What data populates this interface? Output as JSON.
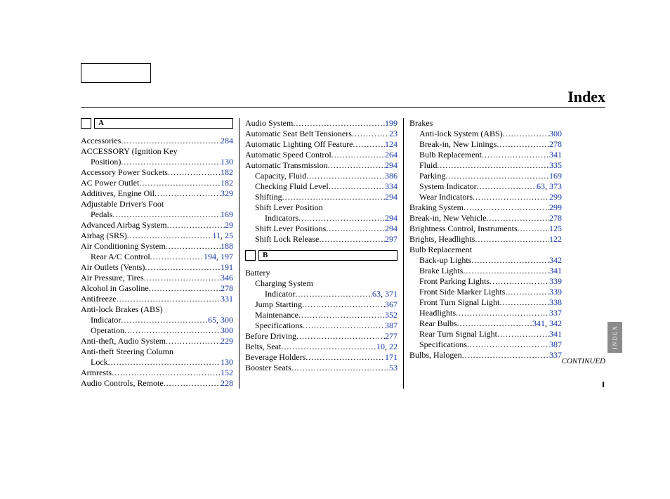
{
  "title": "Index",
  "sidetab": "INDEX",
  "continued": "CONTINUED",
  "letters": {
    "A": "A",
    "B": "B"
  },
  "col1": [
    {
      "t": "letter",
      "k": "A"
    },
    {
      "t": "e",
      "i": 0,
      "label": "Accessories",
      "pages": [
        "284"
      ]
    },
    {
      "t": "h",
      "i": 0,
      "label": "ACCESSORY (Ignition Key"
    },
    {
      "t": "e",
      "i": 1,
      "label": "Position)",
      "pages": [
        "130"
      ]
    },
    {
      "t": "e",
      "i": 0,
      "label": "Accessory Power Sockets",
      "pages": [
        "182"
      ]
    },
    {
      "t": "e",
      "i": 0,
      "label": "AC Power Outlet",
      "pages": [
        "182"
      ]
    },
    {
      "t": "e",
      "i": 0,
      "label": "Additives, Engine Oil",
      "pages": [
        "329"
      ]
    },
    {
      "t": "h",
      "i": 0,
      "label": "Adjustable Driver's Foot"
    },
    {
      "t": "e",
      "i": 1,
      "label": "Pedals",
      "pages": [
        "169"
      ]
    },
    {
      "t": "e",
      "i": 0,
      "label": "Advanced Airbag System",
      "pages": [
        "29"
      ]
    },
    {
      "t": "e",
      "i": 0,
      "label": "Airbag (SRS) ",
      "pages": [
        "11",
        "25"
      ]
    },
    {
      "t": "e",
      "i": 0,
      "label": "Air Conditioning System",
      "pages": [
        "188"
      ]
    },
    {
      "t": "e",
      "i": 1,
      "label": "Rear A/C Control",
      "pages": [
        "194",
        "197"
      ]
    },
    {
      "t": "e",
      "i": 0,
      "label": "Air Outlets (Vents)",
      "pages": [
        "191"
      ]
    },
    {
      "t": "e",
      "i": 0,
      "label": "Air Pressure, Tires",
      "pages": [
        "346"
      ]
    },
    {
      "t": "e",
      "i": 0,
      "label": "Alcohol in Gasoline",
      "pages": [
        "278"
      ]
    },
    {
      "t": "e",
      "i": 0,
      "label": "Antifreeze",
      "pages": [
        "331"
      ]
    },
    {
      "t": "h",
      "i": 0,
      "label": "Anti-lock Brakes (ABS)"
    },
    {
      "t": "e",
      "i": 1,
      "label": "Indicator",
      "pages": [
        "65",
        "300"
      ]
    },
    {
      "t": "e",
      "i": 1,
      "label": "Operation",
      "pages": [
        "300"
      ]
    },
    {
      "t": "e",
      "i": 0,
      "label": "Anti-theft, Audio System",
      "pages": [
        "229"
      ]
    },
    {
      "t": "h",
      "i": 0,
      "label": "Anti-theft Steering Column"
    },
    {
      "t": "e",
      "i": 1,
      "label": "Lock",
      "pages": [
        "130"
      ]
    },
    {
      "t": "e",
      "i": 0,
      "label": "Armrests",
      "pages": [
        "152"
      ]
    },
    {
      "t": "e",
      "i": 0,
      "label": "Audio Controls, Remote",
      "pages": [
        "228"
      ]
    }
  ],
  "col2": [
    {
      "t": "e",
      "i": 0,
      "label": "Audio System",
      "pages": [
        "199"
      ]
    },
    {
      "t": "e",
      "i": 0,
      "label": "Automatic Seat Belt Tensioners",
      "pages": [
        "23"
      ]
    },
    {
      "t": "e",
      "i": 0,
      "label": "Automatic Lighting Off Feature",
      "pages": [
        "124"
      ]
    },
    {
      "t": "e",
      "i": 0,
      "label": "Automatic Speed Control",
      "pages": [
        "264"
      ]
    },
    {
      "t": "e",
      "i": 0,
      "label": "Automatic Transmission",
      "pages": [
        "294"
      ]
    },
    {
      "t": "e",
      "i": 1,
      "label": "Capacity, Fluid",
      "pages": [
        "386"
      ]
    },
    {
      "t": "e",
      "i": 1,
      "label": "Checking Fluid Level",
      "pages": [
        "334"
      ]
    },
    {
      "t": "e",
      "i": 1,
      "label": "Shifting",
      "pages": [
        "294"
      ]
    },
    {
      "t": "h",
      "i": 1,
      "label": "Shift Lever Position"
    },
    {
      "t": "e",
      "i": 2,
      "label": "Indicators",
      "pages": [
        "294"
      ]
    },
    {
      "t": "e",
      "i": 1,
      "label": "Shift Lever Positions",
      "pages": [
        "294"
      ]
    },
    {
      "t": "e",
      "i": 1,
      "label": "Shift Lock Release",
      "pages": [
        "297"
      ]
    },
    {
      "t": "gap"
    },
    {
      "t": "letter",
      "k": "B"
    },
    {
      "t": "h",
      "i": 0,
      "label": "Battery"
    },
    {
      "t": "h",
      "i": 1,
      "label": "Charging System"
    },
    {
      "t": "e",
      "i": 2,
      "label": "Indicator",
      "pages": [
        "63",
        "371"
      ]
    },
    {
      "t": "e",
      "i": 1,
      "label": "Jump Starting",
      "pages": [
        "367"
      ]
    },
    {
      "t": "e",
      "i": 1,
      "label": "Maintenance",
      "pages": [
        "352"
      ]
    },
    {
      "t": "e",
      "i": 1,
      "label": "Specifications",
      "pages": [
        "387"
      ]
    },
    {
      "t": "e",
      "i": 0,
      "label": "Before Driving",
      "pages": [
        "277"
      ]
    },
    {
      "t": "e",
      "i": 0,
      "label": "Belts, Seat",
      "pages": [
        "10",
        "22"
      ]
    },
    {
      "t": "e",
      "i": 0,
      "label": "Beverage Holders",
      "pages": [
        "171"
      ]
    },
    {
      "t": "e",
      "i": 0,
      "label": "Booster Seats",
      "pages": [
        "53"
      ]
    }
  ],
  "col3": [
    {
      "t": "h",
      "i": 0,
      "label": "Brakes"
    },
    {
      "t": "e",
      "i": 1,
      "label": "Anti-lock System (ABS)",
      "pages": [
        "300"
      ]
    },
    {
      "t": "e",
      "i": 1,
      "label": "Break-in, New Linings",
      "pages": [
        "278"
      ]
    },
    {
      "t": "e",
      "i": 1,
      "label": "Bulb Replacement",
      "pages": [
        "341"
      ]
    },
    {
      "t": "e",
      "i": 1,
      "label": "Fluid",
      "pages": [
        "335"
      ]
    },
    {
      "t": "e",
      "i": 1,
      "label": "Parking",
      "pages": [
        "169"
      ]
    },
    {
      "t": "e",
      "i": 1,
      "label": "System Indicator",
      "pages": [
        "63",
        "373"
      ]
    },
    {
      "t": "e",
      "i": 1,
      "label": "Wear Indicators",
      "pages": [
        "299"
      ]
    },
    {
      "t": "e",
      "i": 0,
      "label": "Braking System",
      "pages": [
        "299"
      ]
    },
    {
      "t": "e",
      "i": 0,
      "label": "Break-in, New Vehicle",
      "pages": [
        "278"
      ]
    },
    {
      "t": "e",
      "i": 0,
      "label": "Brightness Control, Instruments",
      "pages": [
        "125"
      ]
    },
    {
      "t": "e",
      "i": 0,
      "label": "Brights, Headlights",
      "pages": [
        "122"
      ]
    },
    {
      "t": "h",
      "i": 0,
      "label": "Bulb Replacement"
    },
    {
      "t": "e",
      "i": 1,
      "label": "Back-up Lights",
      "pages": [
        "342"
      ]
    },
    {
      "t": "e",
      "i": 1,
      "label": "Brake Lights",
      "pages": [
        "341"
      ]
    },
    {
      "t": "e",
      "i": 1,
      "label": "Front Parking Lights",
      "pages": [
        "339"
      ]
    },
    {
      "t": "e",
      "i": 1,
      "label": "Front Side Marker Lights",
      "pages": [
        "339"
      ]
    },
    {
      "t": "e",
      "i": 1,
      "label": "Front Turn Signal Light",
      "pages": [
        "338"
      ]
    },
    {
      "t": "e",
      "i": 1,
      "label": "Headlights",
      "pages": [
        "337"
      ]
    },
    {
      "t": "e",
      "i": 1,
      "label": "Rear Bulbs",
      "pages": [
        "341",
        "342"
      ]
    },
    {
      "t": "e",
      "i": 1,
      "label": "Rear Turn Signal Light",
      "pages": [
        "341"
      ]
    },
    {
      "t": "e",
      "i": 1,
      "label": "Specifications",
      "pages": [
        "387"
      ]
    },
    {
      "t": "e",
      "i": 0,
      "label": "Bulbs, Halogen",
      "pages": [
        "337"
      ]
    }
  ]
}
